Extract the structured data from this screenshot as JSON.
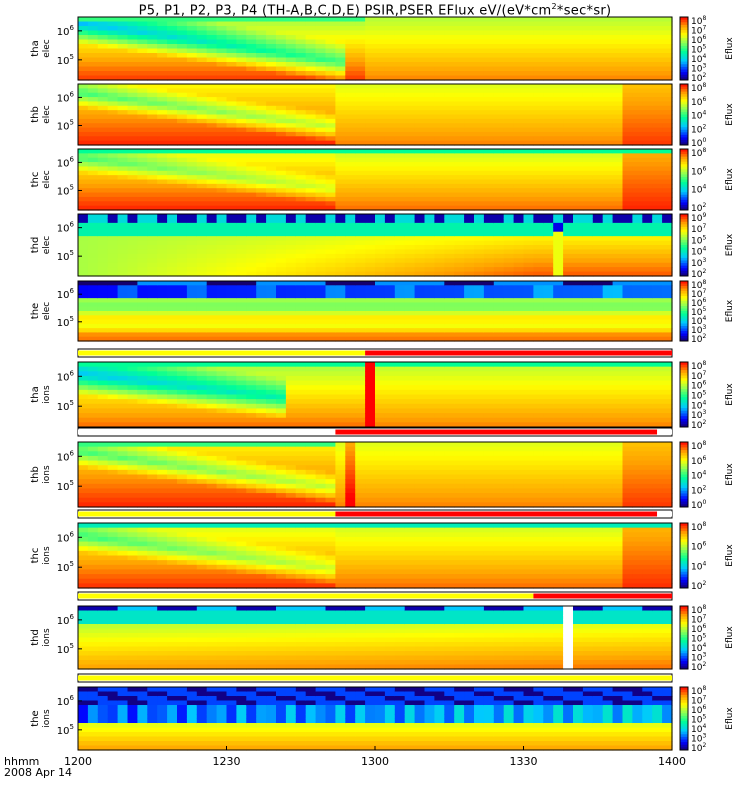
{
  "title": {
    "prefix": "P5, P1, P2, P3, P4 (TH-A,B,C,D,E) PSIR,PSER EFlux eV/(eV*cm",
    "sup": "2",
    "suffix": "*sec*sr)"
  },
  "footer": {
    "format_label": "hhmm",
    "date_label": "2008 Apr 14"
  },
  "chart_data": {
    "type": "heatmap",
    "x_ticks": [
      "1200",
      "1230",
      "1300",
      "1330",
      "1400"
    ],
    "colorbar_label": "Eflux",
    "panels": [
      {
        "probe": "tha",
        "species": "elec",
        "y_ticks": [
          {
            "base": "10",
            "exp": "6"
          },
          {
            "base": "10",
            "exp": "5"
          }
        ],
        "cbar_ticks": [
          {
            "base": "10",
            "exp": "8"
          },
          {
            "base": "10",
            "exp": "7"
          },
          {
            "base": "10",
            "exp": "6"
          },
          {
            "base": "10",
            "exp": "5"
          },
          {
            "base": "10",
            "exp": "4"
          },
          {
            "base": "10",
            "exp": "3"
          },
          {
            "base": "10",
            "exp": "2"
          }
        ],
        "pattern": "tha_elec"
      },
      {
        "probe": "thb",
        "species": "elec",
        "y_ticks": [
          {
            "base": "10",
            "exp": "6"
          },
          {
            "base": "10",
            "exp": "5"
          }
        ],
        "cbar_ticks": [
          {
            "base": "10",
            "exp": "8"
          },
          {
            "base": "10",
            "exp": "6"
          },
          {
            "base": "10",
            "exp": "4"
          },
          {
            "base": "10",
            "exp": "2"
          },
          {
            "base": "10",
            "exp": "0"
          }
        ],
        "pattern": "thb_elec"
      },
      {
        "probe": "thc",
        "species": "elec",
        "y_ticks": [
          {
            "base": "10",
            "exp": "6"
          },
          {
            "base": "10",
            "exp": "5"
          }
        ],
        "cbar_ticks": [
          {
            "base": "10",
            "exp": "8"
          },
          {
            "base": "10",
            "exp": "6"
          },
          {
            "base": "10",
            "exp": "4"
          },
          {
            "base": "10",
            "exp": "2"
          }
        ],
        "pattern": "thc_elec"
      },
      {
        "probe": "thd",
        "species": "elec",
        "y_ticks": [
          {
            "base": "10",
            "exp": "6"
          },
          {
            "base": "10",
            "exp": "5"
          }
        ],
        "cbar_ticks": [
          {
            "base": "10",
            "exp": "9"
          },
          {
            "base": "10",
            "exp": "7"
          },
          {
            "base": "10",
            "exp": "5"
          },
          {
            "base": "10",
            "exp": "4"
          },
          {
            "base": "10",
            "exp": "3"
          },
          {
            "base": "10",
            "exp": "2"
          }
        ],
        "pattern": "thd_elec"
      },
      {
        "probe": "the",
        "species": "elec",
        "y_ticks": [
          {
            "base": "10",
            "exp": "6"
          },
          {
            "base": "10",
            "exp": "5"
          }
        ],
        "cbar_ticks": [
          {
            "base": "10",
            "exp": "8"
          },
          {
            "base": "10",
            "exp": "7"
          },
          {
            "base": "10",
            "exp": "6"
          },
          {
            "base": "10",
            "exp": "5"
          },
          {
            "base": "10",
            "exp": "4"
          },
          {
            "base": "10",
            "exp": "3"
          },
          {
            "base": "10",
            "exp": "2"
          }
        ],
        "pattern": "the_elec"
      },
      {
        "probe": "tha",
        "species": "ions",
        "y_ticks": [
          {
            "base": "10",
            "exp": "6"
          },
          {
            "base": "10",
            "exp": "5"
          }
        ],
        "cbar_ticks": [
          {
            "base": "10",
            "exp": "8"
          },
          {
            "base": "10",
            "exp": "7"
          },
          {
            "base": "10",
            "exp": "6"
          },
          {
            "base": "10",
            "exp": "5"
          },
          {
            "base": "10",
            "exp": "4"
          },
          {
            "base": "10",
            "exp": "3"
          },
          {
            "base": "10",
            "exp": "2"
          }
        ],
        "pattern": "tha_ions"
      },
      {
        "probe": "thb",
        "species": "ions",
        "y_ticks": [
          {
            "base": "10",
            "exp": "6"
          },
          {
            "base": "10",
            "exp": "5"
          }
        ],
        "cbar_ticks": [
          {
            "base": "10",
            "exp": "8"
          },
          {
            "base": "10",
            "exp": "6"
          },
          {
            "base": "10",
            "exp": "4"
          },
          {
            "base": "10",
            "exp": "2"
          },
          {
            "base": "10",
            "exp": "0"
          }
        ],
        "pattern": "thb_ions"
      },
      {
        "probe": "thc",
        "species": "ions",
        "y_ticks": [
          {
            "base": "10",
            "exp": "6"
          },
          {
            "base": "10",
            "exp": "5"
          }
        ],
        "cbar_ticks": [
          {
            "base": "10",
            "exp": "8"
          },
          {
            "base": "10",
            "exp": "6"
          },
          {
            "base": "10",
            "exp": "4"
          },
          {
            "base": "10",
            "exp": "2"
          }
        ],
        "pattern": "thc_ions"
      },
      {
        "probe": "thd",
        "species": "ions",
        "y_ticks": [
          {
            "base": "10",
            "exp": "6"
          },
          {
            "base": "10",
            "exp": "5"
          }
        ],
        "cbar_ticks": [
          {
            "base": "10",
            "exp": "8"
          },
          {
            "base": "10",
            "exp": "7"
          },
          {
            "base": "10",
            "exp": "6"
          },
          {
            "base": "10",
            "exp": "5"
          },
          {
            "base": "10",
            "exp": "4"
          },
          {
            "base": "10",
            "exp": "3"
          },
          {
            "base": "10",
            "exp": "2"
          }
        ],
        "pattern": "thd_ions"
      },
      {
        "probe": "the",
        "species": "ions",
        "y_ticks": [
          {
            "base": "10",
            "exp": "6"
          },
          {
            "base": "10",
            "exp": "5"
          }
        ],
        "cbar_ticks": [
          {
            "base": "10",
            "exp": "8"
          },
          {
            "base": "10",
            "exp": "7"
          },
          {
            "base": "10",
            "exp": "6"
          },
          {
            "base": "10",
            "exp": "5"
          },
          {
            "base": "10",
            "exp": "4"
          },
          {
            "base": "10",
            "exp": "3"
          },
          {
            "base": "10",
            "exp": "2"
          }
        ],
        "pattern": "the_ions"
      }
    ],
    "mode_bars": [
      {
        "after": "the_elec",
        "segments": [
          {
            "from": "1200",
            "to": "1258",
            "color": "#ffff00"
          },
          {
            "from": "1258",
            "to": "1400",
            "color": "#ff0000"
          }
        ]
      },
      {
        "after": "tha_ions",
        "segments": [
          {
            "from": "1200",
            "to": "1252",
            "color": "#ffffff"
          },
          {
            "from": "1252",
            "to": "1357",
            "color": "#ff0000"
          },
          {
            "from": "1357",
            "to": "1400",
            "color": "#ffffff"
          }
        ]
      },
      {
        "after": "thb_ions",
        "segments": [
          {
            "from": "1200",
            "to": "1252",
            "color": "#ffff00"
          },
          {
            "from": "1252",
            "to": "1357",
            "color": "#ff0000"
          },
          {
            "from": "1357",
            "to": "1400",
            "color": "#ffffff"
          }
        ]
      },
      {
        "after": "thc_ions",
        "segments": [
          {
            "from": "1200",
            "to": "1332",
            "color": "#ffff00"
          },
          {
            "from": "1332",
            "to": "1400",
            "color": "#ff0000"
          }
        ]
      },
      {
        "after": "thd_ions",
        "segments": [
          {
            "from": "1200",
            "to": "1400",
            "color": "#ffff00"
          }
        ]
      }
    ],
    "colors": {
      "low": "#000080",
      "mid_low": "#00c8ff",
      "mid": "#80ff80",
      "mid_high": "#ffff00",
      "high": "#ff0000"
    }
  }
}
